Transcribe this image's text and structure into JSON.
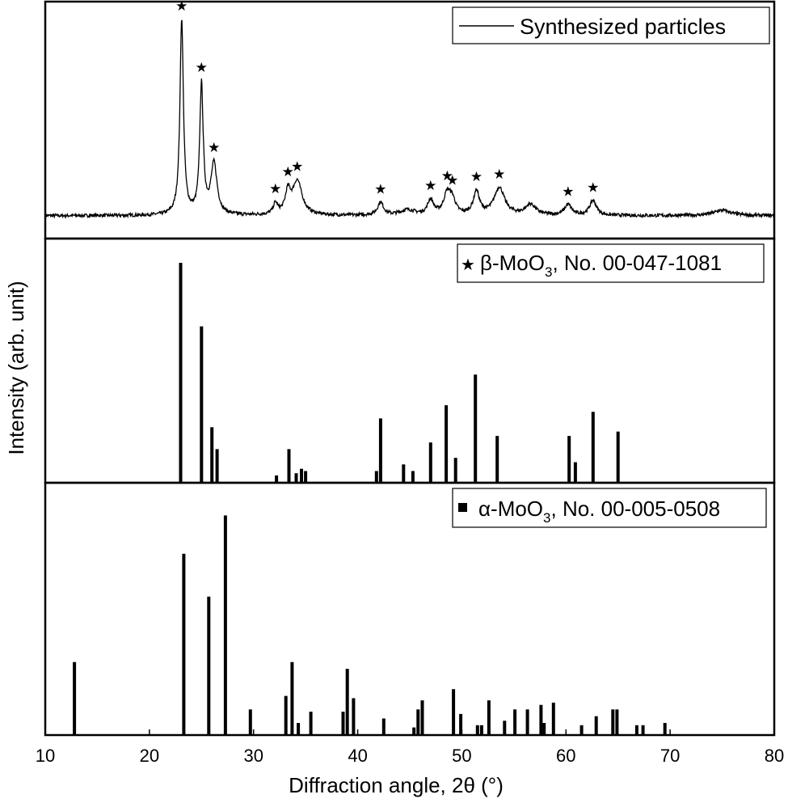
{
  "chart_data": {
    "type": "line",
    "xlabel": "Diffraction angle, 2θ (°)",
    "ylabel": "Intensity (arb. unit)",
    "xlim": [
      10,
      80
    ],
    "x_ticks": [
      10,
      20,
      30,
      40,
      50,
      60,
      70,
      80
    ],
    "grid": false,
    "panels": [
      {
        "type": "line",
        "legend": {
          "text": "Synthesized particles",
          "marker": "line",
          "placement": "top-right"
        },
        "ylim": [
          0,
          100
        ],
        "baseline": 2,
        "peaks": [
          {
            "x": 23.1,
            "h": 92,
            "w": 0.2,
            "star": true
          },
          {
            "x": 25.0,
            "h": 61,
            "w": 0.2,
            "star": true
          },
          {
            "x": 26.2,
            "h": 24,
            "w": 0.35,
            "star": true
          },
          {
            "x": 32.1,
            "h": 5,
            "w": 0.25,
            "star": true
          },
          {
            "x": 33.3,
            "h": 10,
            "w": 0.3,
            "star": true
          },
          {
            "x": 34.2,
            "h": 16,
            "w": 0.55,
            "star": true
          },
          {
            "x": 42.2,
            "h": 6,
            "w": 0.35,
            "star": true
          },
          {
            "x": 47.0,
            "h": 7,
            "w": 0.35,
            "star": true
          },
          {
            "x": 48.6,
            "h": 10,
            "w": 0.4,
            "star": true
          },
          {
            "x": 49.1,
            "h": 6,
            "w": 0.35,
            "star": true
          },
          {
            "x": 51.4,
            "h": 11,
            "w": 0.35,
            "star": true
          },
          {
            "x": 53.6,
            "h": 13,
            "w": 0.6,
            "star": true
          },
          {
            "x": 56.6,
            "h": 5,
            "w": 0.6,
            "star": false
          },
          {
            "x": 60.2,
            "h": 5,
            "w": 0.4,
            "star": true
          },
          {
            "x": 62.6,
            "h": 7,
            "w": 0.4,
            "star": true
          },
          {
            "x": 44.8,
            "h": 2.5,
            "w": 0.8,
            "star": false
          },
          {
            "x": 75.0,
            "h": 2.5,
            "w": 1.0,
            "star": false
          }
        ]
      },
      {
        "type": "bar",
        "legend": {
          "text": "β-MoO",
          "sub": "3",
          "rest": ", No. 00-047-1081",
          "marker": "star",
          "placement": "top-right"
        },
        "ylim": [
          0,
          100
        ],
        "sticks": [
          {
            "x": 23.0,
            "y": 100
          },
          {
            "x": 25.0,
            "y": 71
          },
          {
            "x": 26.0,
            "y": 25
          },
          {
            "x": 26.5,
            "y": 15
          },
          {
            "x": 32.2,
            "y": 3
          },
          {
            "x": 33.4,
            "y": 15
          },
          {
            "x": 34.1,
            "y": 4
          },
          {
            "x": 34.6,
            "y": 6
          },
          {
            "x": 35.0,
            "y": 5
          },
          {
            "x": 41.8,
            "y": 5
          },
          {
            "x": 42.2,
            "y": 29
          },
          {
            "x": 44.4,
            "y": 8
          },
          {
            "x": 45.3,
            "y": 5
          },
          {
            "x": 47.0,
            "y": 18
          },
          {
            "x": 48.5,
            "y": 35
          },
          {
            "x": 49.4,
            "y": 11
          },
          {
            "x": 51.3,
            "y": 49
          },
          {
            "x": 53.4,
            "y": 21
          },
          {
            "x": 60.3,
            "y": 21
          },
          {
            "x": 60.9,
            "y": 9
          },
          {
            "x": 62.6,
            "y": 32
          },
          {
            "x": 65.0,
            "y": 23
          }
        ]
      },
      {
        "type": "bar",
        "legend": {
          "text": "α-MoO",
          "sub": "3",
          "rest": ", No. 00-005-0508",
          "marker": "square",
          "placement": "top-right"
        },
        "ylim": [
          0,
          100
        ],
        "sticks": [
          {
            "x": 12.8,
            "y": 32
          },
          {
            "x": 23.3,
            "y": 80
          },
          {
            "x": 25.7,
            "y": 61
          },
          {
            "x": 27.3,
            "y": 97
          },
          {
            "x": 29.7,
            "y": 11
          },
          {
            "x": 33.1,
            "y": 17
          },
          {
            "x": 33.7,
            "y": 32
          },
          {
            "x": 34.3,
            "y": 5
          },
          {
            "x": 35.5,
            "y": 10
          },
          {
            "x": 38.6,
            "y": 10
          },
          {
            "x": 39.0,
            "y": 29
          },
          {
            "x": 39.6,
            "y": 16
          },
          {
            "x": 42.5,
            "y": 7
          },
          {
            "x": 45.4,
            "y": 3
          },
          {
            "x": 45.8,
            "y": 11
          },
          {
            "x": 46.2,
            "y": 15
          },
          {
            "x": 49.2,
            "y": 20
          },
          {
            "x": 49.9,
            "y": 9
          },
          {
            "x": 51.5,
            "y": 4
          },
          {
            "x": 51.9,
            "y": 4
          },
          {
            "x": 52.6,
            "y": 15
          },
          {
            "x": 54.1,
            "y": 6
          },
          {
            "x": 55.1,
            "y": 11
          },
          {
            "x": 56.3,
            "y": 11
          },
          {
            "x": 57.6,
            "y": 13
          },
          {
            "x": 57.9,
            "y": 5
          },
          {
            "x": 58.8,
            "y": 14
          },
          {
            "x": 61.5,
            "y": 4
          },
          {
            "x": 62.9,
            "y": 8
          },
          {
            "x": 64.5,
            "y": 11
          },
          {
            "x": 64.9,
            "y": 11
          },
          {
            "x": 66.8,
            "y": 4
          },
          {
            "x": 67.4,
            "y": 4
          },
          {
            "x": 69.5,
            "y": 5
          }
        ]
      }
    ]
  }
}
